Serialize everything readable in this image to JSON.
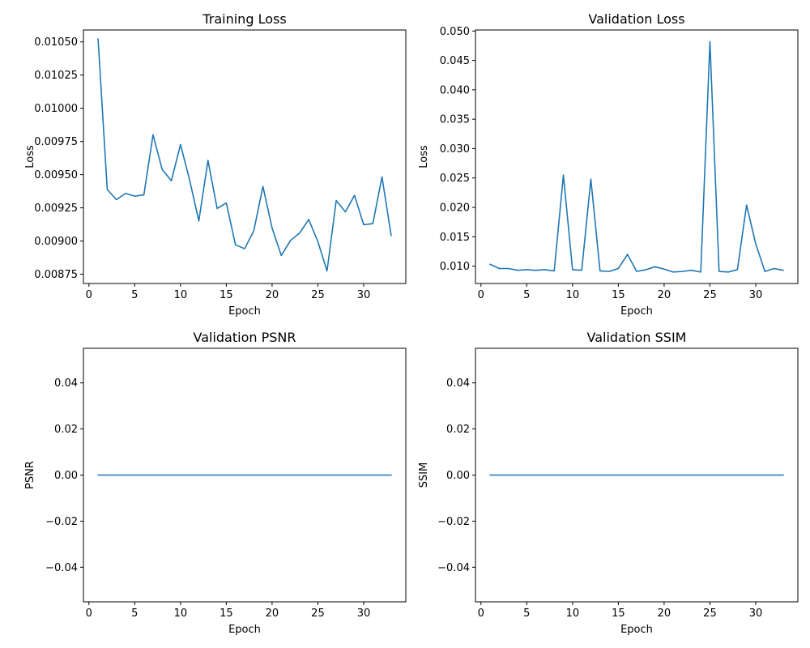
{
  "colors": {
    "line": "#1f77b4",
    "axis": "#000000",
    "background": "#ffffff"
  },
  "chart_data": [
    {
      "type": "line",
      "title": "Training Loss",
      "xlabel": "Epoch",
      "ylabel": "Loss",
      "xlim": [
        -0.6,
        34.6
      ],
      "ylim": [
        0.00868,
        0.01059
      ],
      "xticks": [
        0,
        5,
        10,
        15,
        20,
        25,
        30
      ],
      "xtick_labels": [
        "0",
        "5",
        "10",
        "15",
        "20",
        "25",
        "30"
      ],
      "yticks": [
        0.00875,
        0.009,
        0.00925,
        0.0095,
        0.00975,
        0.01,
        0.01025,
        0.0105
      ],
      "ytick_labels": [
        "0.00875",
        "0.00900",
        "0.00925",
        "0.00950",
        "0.00975",
        "0.01000",
        "0.01025",
        "0.01050"
      ],
      "grid": false,
      "series": [
        {
          "x": [
            1,
            2,
            3,
            4,
            5,
            6,
            7,
            8,
            9,
            10,
            11,
            12,
            13,
            14,
            15,
            16,
            17,
            18,
            19,
            20,
            21,
            22,
            23,
            24,
            25,
            26,
            27,
            28,
            29,
            30,
            31,
            32,
            33
          ],
          "values": [
            0.010522,
            0.009388,
            0.009312,
            0.009359,
            0.009338,
            0.009348,
            0.0098,
            0.009539,
            0.009454,
            0.009727,
            0.009458,
            0.009151,
            0.009608,
            0.009245,
            0.009287,
            0.008971,
            0.008942,
            0.009077,
            0.009411,
            0.009098,
            0.008891,
            0.009003,
            0.00906,
            0.009162,
            0.008995,
            0.008775,
            0.009305,
            0.00922,
            0.009344,
            0.009123,
            0.009131,
            0.009483,
            0.009042
          ]
        }
      ]
    },
    {
      "type": "line",
      "title": "Validation Loss",
      "xlabel": "Epoch",
      "ylabel": "Loss",
      "xlim": [
        -0.6,
        34.6
      ],
      "ylim": [
        0.00705,
        0.05018
      ],
      "xticks": [
        0,
        5,
        10,
        15,
        20,
        25,
        30
      ],
      "xtick_labels": [
        "0",
        "5",
        "10",
        "15",
        "20",
        "25",
        "30"
      ],
      "yticks": [
        0.01,
        0.015,
        0.02,
        0.025,
        0.03,
        0.035,
        0.04,
        0.045,
        0.05
      ],
      "ytick_labels": [
        "0.010",
        "0.015",
        "0.020",
        "0.025",
        "0.030",
        "0.035",
        "0.040",
        "0.045",
        "0.050"
      ],
      "grid": false,
      "series": [
        {
          "x": [
            1,
            2,
            3,
            4,
            5,
            6,
            7,
            8,
            9,
            10,
            11,
            12,
            13,
            14,
            15,
            16,
            17,
            18,
            19,
            20,
            21,
            22,
            23,
            24,
            25,
            26,
            27,
            28,
            29,
            30,
            31,
            32,
            33
          ],
          "values": [
            0.0103,
            0.0096,
            0.0096,
            0.0093,
            0.0094,
            0.0093,
            0.0094,
            0.0092,
            0.0255,
            0.0094,
            0.0093,
            0.0248,
            0.0092,
            0.0091,
            0.0096,
            0.012,
            0.0091,
            0.0094,
            0.0099,
            0.0095,
            0.009,
            0.0091,
            0.0093,
            0.009,
            0.0482,
            0.0091,
            0.009,
            0.0094,
            0.0204,
            0.0138,
            0.0091,
            0.0096,
            0.0093
          ]
        }
      ]
    },
    {
      "type": "line",
      "title": "Validation PSNR",
      "xlabel": "Epoch",
      "ylabel": "PSNR",
      "xlim": [
        -0.6,
        34.6
      ],
      "ylim": [
        -0.055,
        0.055
      ],
      "xticks": [
        0,
        5,
        10,
        15,
        20,
        25,
        30
      ],
      "xtick_labels": [
        "0",
        "5",
        "10",
        "15",
        "20",
        "25",
        "30"
      ],
      "yticks": [
        -0.04,
        -0.02,
        0.0,
        0.02,
        0.04
      ],
      "ytick_labels": [
        "−0.04",
        "−0.02",
        "0.00",
        "0.02",
        "0.04"
      ],
      "grid": false,
      "series": [
        {
          "x": [
            1,
            2,
            3,
            4,
            5,
            6,
            7,
            8,
            9,
            10,
            11,
            12,
            13,
            14,
            15,
            16,
            17,
            18,
            19,
            20,
            21,
            22,
            23,
            24,
            25,
            26,
            27,
            28,
            29,
            30,
            31,
            32,
            33
          ],
          "values": [
            0,
            0,
            0,
            0,
            0,
            0,
            0,
            0,
            0,
            0,
            0,
            0,
            0,
            0,
            0,
            0,
            0,
            0,
            0,
            0,
            0,
            0,
            0,
            0,
            0,
            0,
            0,
            0,
            0,
            0,
            0,
            0,
            0
          ]
        }
      ]
    },
    {
      "type": "line",
      "title": "Validation SSIM",
      "xlabel": "Epoch",
      "ylabel": "SSIM",
      "xlim": [
        -0.6,
        34.6
      ],
      "ylim": [
        -0.055,
        0.055
      ],
      "xticks": [
        0,
        5,
        10,
        15,
        20,
        25,
        30
      ],
      "xtick_labels": [
        "0",
        "5",
        "10",
        "15",
        "20",
        "25",
        "30"
      ],
      "yticks": [
        -0.04,
        -0.02,
        0.0,
        0.02,
        0.04
      ],
      "ytick_labels": [
        "−0.04",
        "−0.02",
        "0.00",
        "0.02",
        "0.04"
      ],
      "grid": false,
      "series": [
        {
          "x": [
            1,
            2,
            3,
            4,
            5,
            6,
            7,
            8,
            9,
            10,
            11,
            12,
            13,
            14,
            15,
            16,
            17,
            18,
            19,
            20,
            21,
            22,
            23,
            24,
            25,
            26,
            27,
            28,
            29,
            30,
            31,
            32,
            33
          ],
          "values": [
            0,
            0,
            0,
            0,
            0,
            0,
            0,
            0,
            0,
            0,
            0,
            0,
            0,
            0,
            0,
            0,
            0,
            0,
            0,
            0,
            0,
            0,
            0,
            0,
            0,
            0,
            0,
            0,
            0,
            0,
            0,
            0,
            0
          ]
        }
      ]
    }
  ]
}
